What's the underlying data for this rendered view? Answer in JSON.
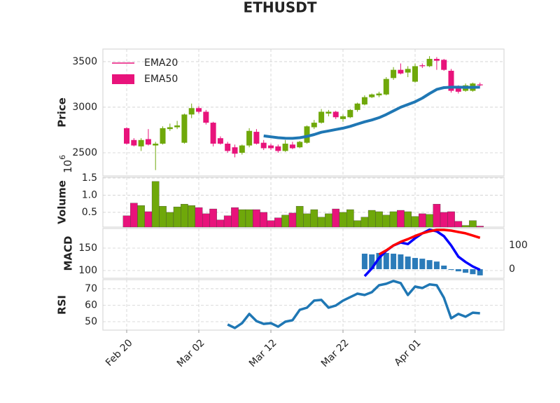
{
  "chart_data": [
    {
      "type": "candlestick",
      "title": "ETHUSDT",
      "ylabel": "Price",
      "categories": [
        "Feb 20",
        "Feb 21",
        "Feb 22",
        "Feb 23",
        "Feb 24",
        "Feb 25",
        "Feb 26",
        "Feb 27",
        "Feb 28",
        "Mar 01",
        "Mar 02",
        "Mar 03",
        "Mar 04",
        "Mar 05",
        "Mar 06",
        "Mar 07",
        "Mar 08",
        "Mar 09",
        "Mar 10",
        "Mar 11",
        "Mar 12",
        "Mar 13",
        "Mar 14",
        "Mar 15",
        "Mar 16",
        "Mar 17",
        "Mar 18",
        "Mar 19",
        "Mar 20",
        "Mar 21",
        "Mar 22",
        "Mar 23",
        "Mar 24",
        "Mar 25",
        "Mar 26",
        "Mar 27",
        "Mar 28",
        "Mar 29",
        "Mar 30",
        "Mar 31",
        "Apr 01",
        "Apr 02",
        "Apr 03",
        "Apr 04",
        "Apr 05",
        "Apr 06",
        "Apr 07",
        "Apr 08",
        "Apr 09",
        "Apr 10"
      ],
      "open": [
        2770,
        2640,
        2570,
        2650,
        2580,
        2600,
        2760,
        2780,
        2610,
        2920,
        2990,
        2950,
        2830,
        2660,
        2600,
        2560,
        2500,
        2580,
        2730,
        2610,
        2580,
        2570,
        2520,
        2590,
        2560,
        2610,
        2780,
        2830,
        2930,
        2950,
        2870,
        2890,
        2970,
        3030,
        3110,
        3130,
        3140,
        3320,
        3410,
        3380,
        3280,
        3460,
        3450,
        3530,
        3520,
        3400,
        3220,
        3180,
        3180,
        3250
      ],
      "high": [
        2780,
        2660,
        2660,
        2760,
        2620,
        2790,
        2820,
        2850,
        2930,
        3040,
        3010,
        2970,
        2840,
        2680,
        2620,
        2590,
        2590,
        2770,
        2760,
        2640,
        2600,
        2590,
        2640,
        2620,
        2630,
        2800,
        2860,
        2980,
        2970,
        2960,
        2920,
        2980,
        3050,
        3130,
        3150,
        3170,
        3330,
        3440,
        3480,
        3450,
        3480,
        3480,
        3560,
        3550,
        3530,
        3420,
        3240,
        3260,
        3270,
        3270
      ],
      "low": [
        2590,
        2570,
        2520,
        2580,
        2310,
        2590,
        2740,
        2760,
        2600,
        2880,
        2930,
        2810,
        2570,
        2590,
        2500,
        2450,
        2480,
        2560,
        2590,
        2530,
        2530,
        2500,
        2510,
        2540,
        2550,
        2600,
        2760,
        2820,
        2900,
        2870,
        2840,
        2880,
        2950,
        3020,
        3100,
        3110,
        3130,
        3300,
        3360,
        3330,
        3270,
        3430,
        3440,
        3410,
        3400,
        3160,
        3150,
        3170,
        3170,
        3230
      ],
      "close": [
        2600,
        2580,
        2640,
        2590,
        2600,
        2770,
        2780,
        2800,
        2920,
        2990,
        2950,
        2830,
        2600,
        2600,
        2520,
        2490,
        2580,
        2740,
        2600,
        2550,
        2550,
        2520,
        2600,
        2550,
        2620,
        2790,
        2830,
        2950,
        2950,
        2890,
        2900,
        2970,
        3040,
        3110,
        3140,
        3150,
        3310,
        3410,
        3370,
        3420,
        3450,
        3450,
        3530,
        3510,
        3410,
        3180,
        3170,
        3240,
        3260,
        3240
      ],
      "up_color": "#6fa80a",
      "down_color": "#e8137b",
      "series": [
        {
          "color": "#1f77b4",
          "values": [
            null,
            null,
            null,
            null,
            null,
            null,
            null,
            null,
            null,
            null,
            null,
            null,
            null,
            null,
            null,
            null,
            null,
            null,
            null,
            2685,
            2675,
            2665,
            2660,
            2658,
            2665,
            2680,
            2700,
            2725,
            2740,
            2755,
            2770,
            2790,
            2815,
            2840,
            2860,
            2885,
            2920,
            2960,
            3000,
            3030,
            3060,
            3100,
            3150,
            3195,
            3215,
            3220,
            3220,
            3218,
            3218,
            3220
          ]
        }
      ],
      "legend": [
        {
          "label": "EMA20",
          "color": "#e8137b",
          "marker": "line"
        },
        {
          "label": "EMA50",
          "color": "#e8137b",
          "marker": "patch"
        }
      ],
      "ylim": [
        2246,
        3638
      ],
      "yticks": [
        2500,
        3000,
        3500
      ],
      "xticks": [
        "Feb 20",
        "Mar 02",
        "Mar 12",
        "Mar 22",
        "Apr 01"
      ],
      "grid": true
    },
    {
      "type": "bar",
      "ylabel": "Volume",
      "scale_base": "10",
      "scale_exponent": "6",
      "values": [
        0.4,
        0.77,
        0.7,
        0.52,
        1.4,
        0.68,
        0.5,
        0.66,
        0.74,
        0.7,
        0.64,
        0.46,
        0.6,
        0.28,
        0.4,
        0.64,
        0.58,
        0.58,
        0.58,
        0.5,
        0.26,
        0.34,
        0.42,
        0.48,
        0.68,
        0.46,
        0.58,
        0.36,
        0.46,
        0.6,
        0.5,
        0.58,
        0.26,
        0.36,
        0.56,
        0.52,
        0.42,
        0.52,
        0.56,
        0.52,
        0.38,
        0.46,
        0.44,
        0.74,
        0.5,
        0.52,
        0.24,
        0.12,
        0.26,
        0.1
      ],
      "ylim": [
        0.07,
        1.52
      ],
      "yticks": [
        0.5,
        {
          "value": 1,
          "label": "1.0"
        },
        1.5
      ],
      "grid": true
    },
    {
      "type": "macd",
      "ylabel": "MACD",
      "series": [
        {
          "color": "#0000ff",
          "values": [
            null,
            null,
            null,
            null,
            null,
            null,
            null,
            null,
            null,
            null,
            null,
            null,
            null,
            null,
            null,
            null,
            null,
            null,
            null,
            null,
            null,
            null,
            null,
            null,
            null,
            null,
            null,
            null,
            null,
            null,
            null,
            null,
            null,
            87.5,
            104.7,
            128,
            144,
            156,
            162.5,
            159,
            172,
            183,
            191,
            187.5,
            176.5,
            156,
            131,
            119,
            109,
            101.5
          ]
        },
        {
          "color": "#ff0000",
          "values": [
            null,
            null,
            null,
            null,
            null,
            null,
            null,
            null,
            null,
            null,
            null,
            null,
            null,
            null,
            null,
            null,
            null,
            null,
            null,
            null,
            null,
            null,
            null,
            null,
            null,
            null,
            null,
            null,
            null,
            null,
            null,
            null,
            null,
            null,
            null,
            136,
            145,
            156,
            164,
            170,
            177,
            183,
            187.5,
            190.6,
            190.6,
            189,
            186,
            183,
            178,
            173
          ]
        }
      ],
      "histogram": {
        "color": "#2b7bb9",
        "axis": "y2",
        "values": [
          null,
          null,
          null,
          null,
          null,
          null,
          null,
          null,
          null,
          null,
          null,
          null,
          null,
          null,
          null,
          null,
          null,
          null,
          null,
          null,
          null,
          null,
          null,
          null,
          null,
          null,
          null,
          null,
          null,
          null,
          null,
          null,
          null,
          65,
          62,
          68,
          68,
          65,
          62,
          53,
          47,
          44,
          38,
          32,
          15,
          -3,
          -9,
          -15,
          -21,
          -26
        ]
      },
      "ylim": [
        82.8,
        193.75
      ],
      "yticks": [
        100,
        150
      ],
      "y2lim": [
        -38,
        170.6
      ],
      "y2ticks": [
        0,
        100
      ],
      "grid": true
    },
    {
      "type": "line",
      "ylabel": "RSI",
      "color": "#1f77b4",
      "values": [
        null,
        null,
        null,
        null,
        null,
        null,
        null,
        null,
        null,
        null,
        null,
        null,
        null,
        null,
        48.3,
        46.2,
        49.1,
        54.7,
        50.4,
        48.7,
        49.1,
        47,
        50,
        50.9,
        57.2,
        58.5,
        62.8,
        63.2,
        58.5,
        59.8,
        62.8,
        64.9,
        67,
        66.2,
        67.9,
        72.1,
        73,
        74.7,
        73.4,
        66.2,
        71.3,
        70.4,
        72.6,
        72.1,
        64.5,
        52.1,
        54.7,
        53,
        55.5,
        55.1
      ],
      "ylim": [
        44.9,
        75.5
      ],
      "yticks": [
        50,
        60,
        70
      ],
      "grid": true
    }
  ]
}
